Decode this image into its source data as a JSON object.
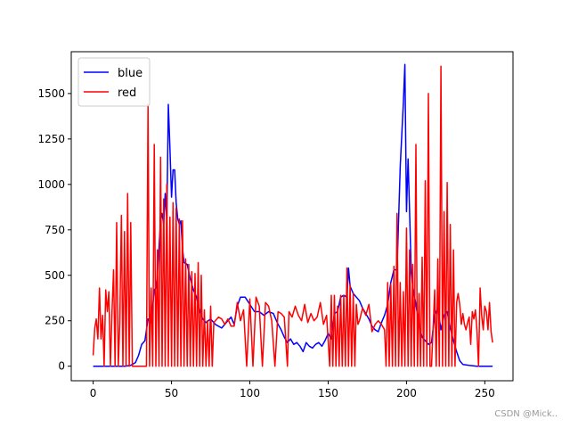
{
  "chart_data": {
    "type": "line",
    "title": "",
    "xlabel": "",
    "ylabel": "",
    "xlim": [
      -14,
      268
    ],
    "ylim": [
      -80,
      1730
    ],
    "grid": false,
    "legend_position": "top-left",
    "x_ticks": [
      0,
      50,
      100,
      150,
      200,
      250
    ],
    "y_ticks": [
      0,
      250,
      500,
      750,
      1000,
      1250,
      1500
    ],
    "series": [
      {
        "name": "blue",
        "color": "#0000ff",
        "points": [
          [
            0,
            0
          ],
          [
            5,
            0
          ],
          [
            10,
            0
          ],
          [
            15,
            0
          ],
          [
            20,
            0
          ],
          [
            24,
            5
          ],
          [
            27,
            20
          ],
          [
            29,
            60
          ],
          [
            31,
            120
          ],
          [
            33,
            140
          ],
          [
            35,
            260
          ],
          [
            37,
            240
          ],
          [
            39,
            420
          ],
          [
            40,
            430
          ],
          [
            41,
            500
          ],
          [
            43,
            800
          ],
          [
            44,
            840
          ],
          [
            45,
            780
          ],
          [
            46,
            950
          ],
          [
            47,
            800
          ],
          [
            48,
            1440
          ],
          [
            49,
            1200
          ],
          [
            50,
            930
          ],
          [
            51,
            1080
          ],
          [
            52,
            1080
          ],
          [
            53,
            900
          ],
          [
            54,
            810
          ],
          [
            55,
            780
          ],
          [
            56,
            800
          ],
          [
            57,
            650
          ],
          [
            58,
            570
          ],
          [
            60,
            560
          ],
          [
            62,
            480
          ],
          [
            64,
            420
          ],
          [
            66,
            380
          ],
          [
            68,
            300
          ],
          [
            70,
            260
          ],
          [
            72,
            240
          ],
          [
            75,
            260
          ],
          [
            78,
            230
          ],
          [
            82,
            210
          ],
          [
            86,
            250
          ],
          [
            88,
            270
          ],
          [
            90,
            230
          ],
          [
            92,
            330
          ],
          [
            94,
            380
          ],
          [
            97,
            380
          ],
          [
            100,
            340
          ],
          [
            103,
            300
          ],
          [
            106,
            300
          ],
          [
            109,
            280
          ],
          [
            112,
            300
          ],
          [
            115,
            290
          ],
          [
            118,
            230
          ],
          [
            120,
            200
          ],
          [
            122,
            160
          ],
          [
            124,
            130
          ],
          [
            126,
            150
          ],
          [
            128,
            120
          ],
          [
            130,
            130
          ],
          [
            132,
            110
          ],
          [
            134,
            80
          ],
          [
            136,
            130
          ],
          [
            138,
            110
          ],
          [
            140,
            100
          ],
          [
            142,
            120
          ],
          [
            144,
            130
          ],
          [
            146,
            110
          ],
          [
            148,
            140
          ],
          [
            150,
            180
          ],
          [
            152,
            150
          ],
          [
            154,
            290
          ],
          [
            156,
            300
          ],
          [
            158,
            380
          ],
          [
            160,
            390
          ],
          [
            162,
            380
          ],
          [
            163,
            540
          ],
          [
            164,
            440
          ],
          [
            166,
            400
          ],
          [
            168,
            380
          ],
          [
            170,
            360
          ],
          [
            172,
            320
          ],
          [
            174,
            290
          ],
          [
            176,
            260
          ],
          [
            178,
            220
          ],
          [
            180,
            200
          ],
          [
            182,
            190
          ],
          [
            184,
            240
          ],
          [
            186,
            280
          ],
          [
            188,
            340
          ],
          [
            190,
            460
          ],
          [
            192,
            530
          ],
          [
            194,
            530
          ],
          [
            196,
            1100
          ],
          [
            198,
            1450
          ],
          [
            199,
            1660
          ],
          [
            200,
            850
          ],
          [
            201,
            1140
          ],
          [
            202,
            850
          ],
          [
            203,
            520
          ],
          [
            204,
            440
          ],
          [
            206,
            340
          ],
          [
            208,
            220
          ],
          [
            210,
            160
          ],
          [
            212,
            140
          ],
          [
            214,
            120
          ],
          [
            216,
            130
          ],
          [
            218,
            280
          ],
          [
            220,
            320
          ],
          [
            222,
            200
          ],
          [
            224,
            280
          ],
          [
            226,
            300
          ],
          [
            228,
            210
          ],
          [
            230,
            140
          ],
          [
            232,
            80
          ],
          [
            234,
            30
          ],
          [
            236,
            10
          ],
          [
            240,
            5
          ],
          [
            245,
            0
          ],
          [
            250,
            0
          ],
          [
            255,
            0
          ]
        ]
      },
      {
        "name": "red",
        "color": "#ff0000",
        "points": [
          [
            0,
            60
          ],
          [
            1,
            210
          ],
          [
            2,
            260
          ],
          [
            3,
            150
          ],
          [
            4,
            430
          ],
          [
            5,
            150
          ],
          [
            6,
            280
          ],
          [
            7,
            0
          ],
          [
            8,
            420
          ],
          [
            9,
            300
          ],
          [
            10,
            410
          ],
          [
            11,
            0
          ],
          [
            12,
            290
          ],
          [
            13,
            530
          ],
          [
            14,
            0
          ],
          [
            15,
            790
          ],
          [
            16,
            0
          ],
          [
            17,
            240
          ],
          [
            18,
            830
          ],
          [
            19,
            0
          ],
          [
            20,
            740
          ],
          [
            21,
            0
          ],
          [
            22,
            950
          ],
          [
            23,
            0
          ],
          [
            24,
            790
          ],
          [
            25,
            0
          ],
          [
            26,
            0
          ],
          [
            27,
            0
          ],
          [
            28,
            0
          ],
          [
            29,
            0
          ],
          [
            30,
            0
          ],
          [
            31,
            0
          ],
          [
            32,
            0
          ],
          [
            33,
            0
          ],
          [
            34,
            0
          ],
          [
            35,
            1440
          ],
          [
            36,
            0
          ],
          [
            37,
            430
          ],
          [
            38,
            0
          ],
          [
            39,
            1220
          ],
          [
            40,
            0
          ],
          [
            41,
            640
          ],
          [
            42,
            0
          ],
          [
            43,
            1150
          ],
          [
            44,
            0
          ],
          [
            45,
            920
          ],
          [
            46,
            0
          ],
          [
            47,
            1000
          ],
          [
            48,
            0
          ],
          [
            49,
            820
          ],
          [
            50,
            0
          ],
          [
            51,
            900
          ],
          [
            52,
            0
          ],
          [
            53,
            870
          ],
          [
            54,
            0
          ],
          [
            55,
            810
          ],
          [
            56,
            0
          ],
          [
            57,
            800
          ],
          [
            58,
            0
          ],
          [
            59,
            590
          ],
          [
            60,
            0
          ],
          [
            61,
            560
          ],
          [
            62,
            0
          ],
          [
            63,
            520
          ],
          [
            64,
            0
          ],
          [
            65,
            510
          ],
          [
            66,
            0
          ],
          [
            67,
            570
          ],
          [
            68,
            0
          ],
          [
            69,
            500
          ],
          [
            70,
            0
          ],
          [
            71,
            310
          ],
          [
            72,
            0
          ],
          [
            73,
            250
          ],
          [
            74,
            0
          ],
          [
            75,
            330
          ],
          [
            76,
            0
          ],
          [
            77,
            240
          ],
          [
            78,
            250
          ],
          [
            80,
            270
          ],
          [
            82,
            260
          ],
          [
            84,
            230
          ],
          [
            86,
            260
          ],
          [
            88,
            220
          ],
          [
            90,
            220
          ],
          [
            92,
            350
          ],
          [
            94,
            250
          ],
          [
            96,
            310
          ],
          [
            98,
            0
          ],
          [
            100,
            370
          ],
          [
            102,
            0
          ],
          [
            104,
            380
          ],
          [
            106,
            330
          ],
          [
            108,
            0
          ],
          [
            110,
            350
          ],
          [
            112,
            330
          ],
          [
            114,
            250
          ],
          [
            116,
            0
          ],
          [
            118,
            300
          ],
          [
            120,
            290
          ],
          [
            122,
            270
          ],
          [
            124,
            0
          ],
          [
            125,
            300
          ],
          [
            127,
            270
          ],
          [
            129,
            330
          ],
          [
            131,
            280
          ],
          [
            133,
            250
          ],
          [
            135,
            340
          ],
          [
            137,
            240
          ],
          [
            139,
            290
          ],
          [
            141,
            250
          ],
          [
            143,
            270
          ],
          [
            145,
            350
          ],
          [
            147,
            230
          ],
          [
            149,
            280
          ],
          [
            151,
            0
          ],
          [
            152,
            390
          ],
          [
            153,
            0
          ],
          [
            154,
            390
          ],
          [
            155,
            0
          ],
          [
            156,
            330
          ],
          [
            157,
            0
          ],
          [
            158,
            390
          ],
          [
            159,
            0
          ],
          [
            160,
            390
          ],
          [
            161,
            0
          ],
          [
            162,
            540
          ],
          [
            163,
            0
          ],
          [
            164,
            450
          ],
          [
            165,
            0
          ],
          [
            166,
            400
          ],
          [
            167,
            0
          ],
          [
            168,
            340
          ],
          [
            169,
            230
          ],
          [
            170,
            250
          ],
          [
            172,
            320
          ],
          [
            174,
            280
          ],
          [
            176,
            340
          ],
          [
            178,
            190
          ],
          [
            180,
            230
          ],
          [
            182,
            250
          ],
          [
            184,
            230
          ],
          [
            186,
            200
          ],
          [
            187,
            0
          ],
          [
            188,
            460
          ],
          [
            189,
            0
          ],
          [
            190,
            450
          ],
          [
            191,
            0
          ],
          [
            192,
            550
          ],
          [
            193,
            0
          ],
          [
            194,
            840
          ],
          [
            195,
            0
          ],
          [
            196,
            460
          ],
          [
            197,
            0
          ],
          [
            198,
            410
          ],
          [
            199,
            0
          ],
          [
            200,
            760
          ],
          [
            201,
            0
          ],
          [
            202,
            640
          ],
          [
            203,
            0
          ],
          [
            204,
            560
          ],
          [
            205,
            0
          ],
          [
            206,
            1220
          ],
          [
            207,
            0
          ],
          [
            208,
            400
          ],
          [
            209,
            0
          ],
          [
            210,
            600
          ],
          [
            211,
            0
          ],
          [
            212,
            1020
          ],
          [
            213,
            0
          ],
          [
            214,
            1500
          ],
          [
            215,
            0
          ],
          [
            216,
            0
          ],
          [
            218,
            420
          ],
          [
            219,
            0
          ],
          [
            220,
            590
          ],
          [
            221,
            0
          ],
          [
            222,
            1650
          ],
          [
            223,
            0
          ],
          [
            224,
            850
          ],
          [
            225,
            0
          ],
          [
            226,
            1010
          ],
          [
            227,
            0
          ],
          [
            228,
            780
          ],
          [
            229,
            0
          ],
          [
            230,
            640
          ],
          [
            231,
            0
          ],
          [
            232,
            350
          ],
          [
            233,
            400
          ],
          [
            234,
            340
          ],
          [
            235,
            230
          ],
          [
            236,
            290
          ],
          [
            237,
            230
          ],
          [
            238,
            200
          ],
          [
            239,
            240
          ],
          [
            240,
            270
          ],
          [
            241,
            120
          ],
          [
            242,
            300
          ],
          [
            243,
            260
          ],
          [
            244,
            310
          ],
          [
            245,
            200
          ],
          [
            246,
            0
          ],
          [
            247,
            430
          ],
          [
            248,
            280
          ],
          [
            249,
            200
          ],
          [
            250,
            330
          ],
          [
            251,
            300
          ],
          [
            252,
            200
          ],
          [
            253,
            350
          ],
          [
            254,
            190
          ],
          [
            255,
            130
          ]
        ]
      }
    ]
  },
  "watermark": "CSDN @Mick.."
}
